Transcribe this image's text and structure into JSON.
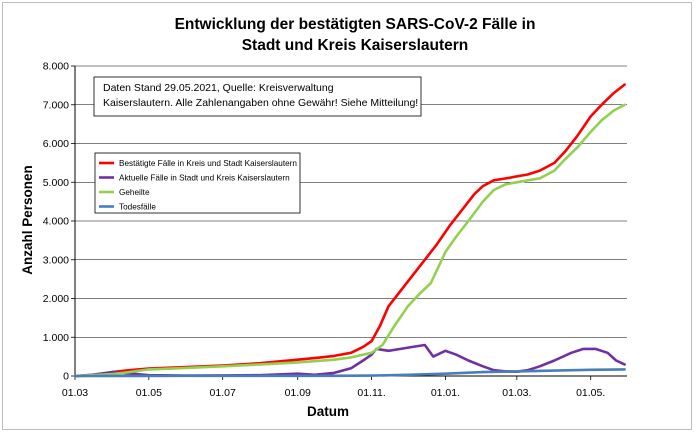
{
  "chart_data": {
    "type": "line",
    "title": [
      "Entwicklung der bestätigten SARS-CoV-2 Fälle in",
      "Stadt und Kreis Kaiserslautern"
    ],
    "xlabel": "Datum",
    "ylabel": "Anzahl Personen",
    "ylim": [
      0,
      8000
    ],
    "yticks": [
      0,
      1000,
      2000,
      3000,
      4000,
      5000,
      6000,
      7000,
      8000
    ],
    "ytick_labels": [
      "0",
      "1.000",
      "2.000",
      "3.000",
      "4.000",
      "5.000",
      "6.000",
      "7.000",
      "8.000"
    ],
    "xlim": [
      "2020-03-01",
      "2021-05-31"
    ],
    "xticks": [
      "2020-03-01",
      "2020-05-01",
      "2020-07-01",
      "2020-09-01",
      "2020-11-01",
      "2021-01-01",
      "2021-03-01",
      "2021-05-01"
    ],
    "xtick_labels": [
      "01.03",
      "01.05",
      "01.07",
      "01.09",
      "01.11.",
      "01.01.",
      "01.03.",
      "01.05."
    ],
    "grid": "horizontal",
    "annotation": [
      "Daten Stand 29.05.2021, Quelle: Kreisverwaltung",
      "Kaiserslautern. Alle Zahlenangaben ohne Gewähr! Siehe Mitteilung!"
    ],
    "legend_position": "left-middle",
    "series": [
      {
        "name": "Bestätigte Fälle in Kreis und Stadt Kaiserslautern",
        "color": "#ff0000",
        "points": [
          [
            "2020-03-01",
            0
          ],
          [
            "2020-03-10",
            5
          ],
          [
            "2020-03-20",
            40
          ],
          [
            "2020-04-01",
            100
          ],
          [
            "2020-04-15",
            150
          ],
          [
            "2020-05-01",
            190
          ],
          [
            "2020-06-01",
            230
          ],
          [
            "2020-07-01",
            270
          ],
          [
            "2020-08-01",
            330
          ],
          [
            "2020-09-01",
            420
          ],
          [
            "2020-09-20",
            480
          ],
          [
            "2020-10-01",
            520
          ],
          [
            "2020-10-15",
            600
          ],
          [
            "2020-10-25",
            750
          ],
          [
            "2020-11-01",
            900
          ],
          [
            "2020-11-08",
            1300
          ],
          [
            "2020-11-15",
            1800
          ],
          [
            "2020-11-25",
            2200
          ],
          [
            "2020-12-05",
            2600
          ],
          [
            "2020-12-15",
            3000
          ],
          [
            "2020-12-25",
            3400
          ],
          [
            "2021-01-05",
            3900
          ],
          [
            "2021-01-15",
            4300
          ],
          [
            "2021-01-25",
            4700
          ],
          [
            "2021-02-01",
            4900
          ],
          [
            "2021-02-10",
            5050
          ],
          [
            "2021-02-20",
            5100
          ],
          [
            "2021-03-01",
            5150
          ],
          [
            "2021-03-10",
            5200
          ],
          [
            "2021-03-20",
            5300
          ],
          [
            "2021-04-01",
            5500
          ],
          [
            "2021-04-10",
            5800
          ],
          [
            "2021-04-20",
            6200
          ],
          [
            "2021-05-01",
            6700
          ],
          [
            "2021-05-10",
            7000
          ],
          [
            "2021-05-20",
            7300
          ],
          [
            "2021-05-29",
            7520
          ]
        ]
      },
      {
        "name": "Aktuelle Fälle in Stadt und Kreis Kaiserslautern",
        "color": "#7030a0",
        "points": [
          [
            "2020-03-01",
            0
          ],
          [
            "2020-03-15",
            30
          ],
          [
            "2020-04-01",
            100
          ],
          [
            "2020-04-10",
            80
          ],
          [
            "2020-05-01",
            20
          ],
          [
            "2020-06-01",
            10
          ],
          [
            "2020-07-01",
            15
          ],
          [
            "2020-08-01",
            20
          ],
          [
            "2020-09-01",
            60
          ],
          [
            "2020-09-15",
            30
          ],
          [
            "2020-10-01",
            80
          ],
          [
            "2020-10-15",
            200
          ],
          [
            "2020-10-25",
            400
          ],
          [
            "2020-11-01",
            550
          ],
          [
            "2020-11-05",
            700
          ],
          [
            "2020-11-15",
            650
          ],
          [
            "2020-11-25",
            700
          ],
          [
            "2020-12-05",
            750
          ],
          [
            "2020-12-15",
            800
          ],
          [
            "2020-12-22",
            500
          ],
          [
            "2021-01-01",
            650
          ],
          [
            "2021-01-10",
            550
          ],
          [
            "2021-01-20",
            400
          ],
          [
            "2021-02-01",
            250
          ],
          [
            "2021-02-10",
            150
          ],
          [
            "2021-02-20",
            120
          ],
          [
            "2021-03-01",
            110
          ],
          [
            "2021-03-10",
            150
          ],
          [
            "2021-03-20",
            250
          ],
          [
            "2021-04-01",
            400
          ],
          [
            "2021-04-15",
            600
          ],
          [
            "2021-04-25",
            700
          ],
          [
            "2021-05-05",
            700
          ],
          [
            "2021-05-15",
            600
          ],
          [
            "2021-05-22",
            400
          ],
          [
            "2021-05-29",
            300
          ]
        ]
      },
      {
        "name": "Geheilte",
        "color": "#92d050",
        "points": [
          [
            "2020-03-01",
            0
          ],
          [
            "2020-04-01",
            50
          ],
          [
            "2020-04-15",
            100
          ],
          [
            "2020-05-01",
            170
          ],
          [
            "2020-06-01",
            210
          ],
          [
            "2020-07-01",
            250
          ],
          [
            "2020-08-01",
            300
          ],
          [
            "2020-09-01",
            350
          ],
          [
            "2020-10-01",
            420
          ],
          [
            "2020-10-15",
            480
          ],
          [
            "2020-11-01",
            600
          ],
          [
            "2020-11-10",
            800
          ],
          [
            "2020-11-20",
            1300
          ],
          [
            "2020-12-01",
            1800
          ],
          [
            "2020-12-10",
            2100
          ],
          [
            "2020-12-20",
            2400
          ],
          [
            "2021-01-01",
            3200
          ],
          [
            "2021-01-10",
            3600
          ],
          [
            "2021-01-20",
            4000
          ],
          [
            "2021-02-01",
            4500
          ],
          [
            "2021-02-10",
            4800
          ],
          [
            "2021-02-20",
            4950
          ],
          [
            "2021-03-01",
            5000
          ],
          [
            "2021-03-10",
            5050
          ],
          [
            "2021-03-20",
            5100
          ],
          [
            "2021-04-01",
            5300
          ],
          [
            "2021-04-10",
            5600
          ],
          [
            "2021-04-20",
            5900
          ],
          [
            "2021-05-01",
            6300
          ],
          [
            "2021-05-10",
            6600
          ],
          [
            "2021-05-20",
            6850
          ],
          [
            "2021-05-29",
            7000
          ]
        ]
      },
      {
        "name": "Todesfälle",
        "color": "#4a7ebb",
        "points": [
          [
            "2020-03-01",
            0
          ],
          [
            "2020-04-01",
            2
          ],
          [
            "2020-05-01",
            3
          ],
          [
            "2020-06-01",
            4
          ],
          [
            "2020-08-01",
            5
          ],
          [
            "2020-10-01",
            6
          ],
          [
            "2020-11-01",
            10
          ],
          [
            "2020-12-01",
            30
          ],
          [
            "2021-01-01",
            60
          ],
          [
            "2021-02-01",
            100
          ],
          [
            "2021-03-01",
            120
          ],
          [
            "2021-04-01",
            140
          ],
          [
            "2021-05-01",
            160
          ],
          [
            "2021-05-29",
            170
          ]
        ]
      }
    ]
  }
}
